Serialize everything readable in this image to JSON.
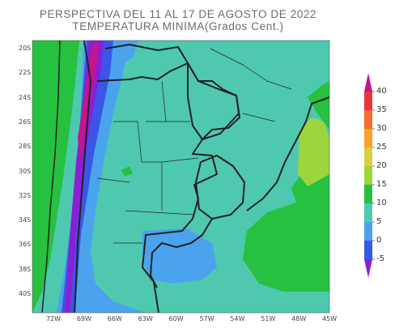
{
  "header": {
    "title_line1": "PERSPECTIVA DEL 11 AL 17 DE AGOSTO DE 2022",
    "title_line2": "TEMPERATURA MINIMA(Grados Cent.)"
  },
  "map": {
    "region": "South America (Argentina)",
    "lat_labels": [
      "20S",
      "22S",
      "24S",
      "26S",
      "28S",
      "30S",
      "32S",
      "34S",
      "36S",
      "38S",
      "40S"
    ],
    "lon_labels": [
      "72W",
      "69W",
      "66W",
      "63W",
      "60W",
      "57W",
      "54W",
      "51W",
      "48W",
      "45W"
    ]
  },
  "legend": {
    "ticks": [
      "40",
      "35",
      "30",
      "25",
      "20",
      "15",
      "10",
      "5",
      "0",
      "-5"
    ],
    "colors": [
      "#c2158f",
      "#e8343c",
      "#f46d2f",
      "#f7a22d",
      "#d8d03a",
      "#9ed43c",
      "#26c140",
      "#4fc8b0",
      "#4ba3ee",
      "#3b55e6",
      "#8a1fd3"
    ]
  }
}
